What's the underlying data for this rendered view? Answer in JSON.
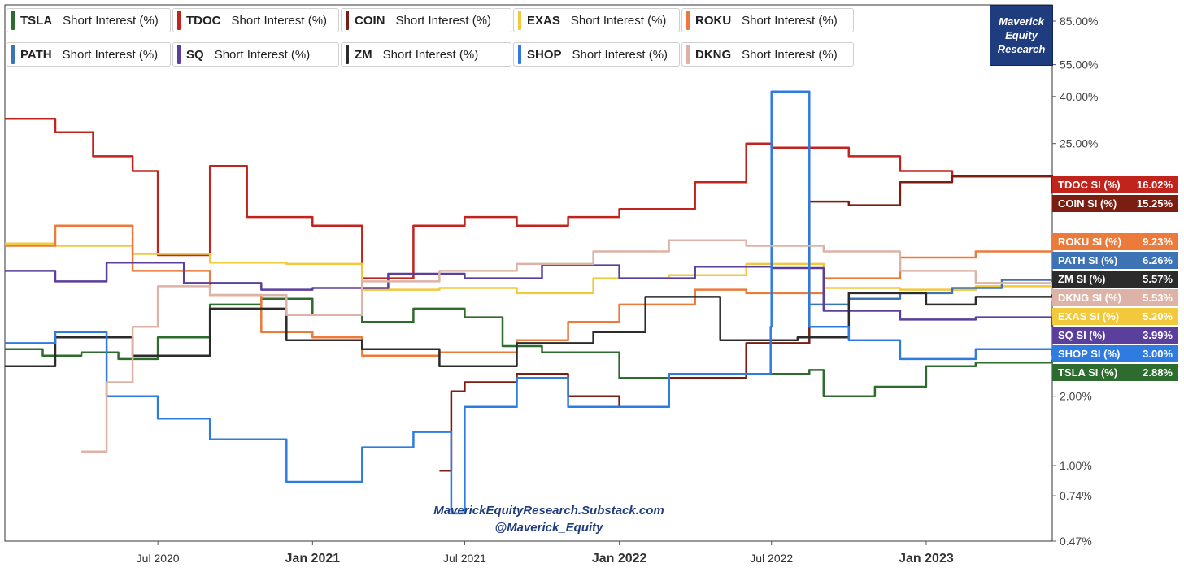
{
  "branding": {
    "box_lines": [
      "Maverick",
      "Equity",
      "Research"
    ],
    "watermark_url": "MaverickEquityResearch.Substack.com",
    "watermark_handle": "@Maverick_Equity"
  },
  "legend": [
    {
      "symbol": "TSLA",
      "label": "Short Interest (%)",
      "color": "#2e6b2e"
    },
    {
      "symbol": "TDOC",
      "label": "Short Interest (%)",
      "color": "#c0241c"
    },
    {
      "symbol": "COIN",
      "label": "Short Interest (%)",
      "color": "#7b1d10"
    },
    {
      "symbol": "EXAS",
      "label": "Short Interest (%)",
      "color": "#f2c83c"
    },
    {
      "symbol": "ROKU",
      "label": "Short Interest (%)",
      "color": "#ec7a3a"
    },
    {
      "symbol": "PATH",
      "label": "Short Interest (%)",
      "color": "#3d73b5"
    },
    {
      "symbol": "SQ",
      "label": "Short Interest (%)",
      "color": "#5b3f9c"
    },
    {
      "symbol": "ZM",
      "label": "Short Interest (%)",
      "color": "#2b2b2b"
    },
    {
      "symbol": "SHOP",
      "label": "Short Interest (%)",
      "color": "#2f7be0"
    },
    {
      "symbol": "DKNG",
      "label": "Short Interest (%)",
      "color": "#dcb3a6"
    }
  ],
  "chart_data": {
    "type": "line",
    "title": "",
    "xlabel": "",
    "ylabel": "",
    "y_scale": "log",
    "ylim": [
      0.47,
      100
    ],
    "y_ticks": [
      "85.00%",
      "55.00%",
      "40.00%",
      "25.00%",
      "2.00%",
      "1.00%",
      "0.74%",
      "0.47%"
    ],
    "x_ticks": [
      "Jul 2020",
      "Jan 2021",
      "Jul 2021",
      "Jan 2022",
      "Jul 2022",
      "Jan 2023"
    ],
    "x_tick_dates": [
      "2020-07-01",
      "2021-01-01",
      "2021-07-01",
      "2022-01-01",
      "2022-07-01",
      "2023-01-01"
    ],
    "x_range": [
      "2020-01-01",
      "2023-05-31"
    ],
    "major_x_ticks": [
      "Jan 2021",
      "Jan 2022",
      "Jan 2023"
    ],
    "grid": false,
    "legend_position": "top",
    "series": [
      {
        "name": "TSLA",
        "color": "#2e6b2e",
        "last": "2.88%",
        "x": [
          "2020-01-01",
          "2020-02-15",
          "2020-04-01",
          "2020-05-15",
          "2020-07-01",
          "2020-09-01",
          "2020-11-01",
          "2021-01-01",
          "2021-03-01",
          "2021-05-01",
          "2021-07-01",
          "2021-08-15",
          "2021-10-01",
          "2022-01-01",
          "2022-03-01",
          "2022-08-15",
          "2022-09-01",
          "2022-11-01",
          "2023-01-01",
          "2023-03-01",
          "2023-05-31"
        ],
        "y": [
          3.2,
          3.0,
          3.1,
          2.9,
          3.6,
          5.0,
          5.3,
          4.5,
          4.2,
          4.8,
          4.4,
          3.3,
          3.1,
          2.4,
          2.5,
          2.6,
          2.0,
          2.2,
          2.7,
          2.8,
          2.88
        ]
      },
      {
        "name": "TDOC",
        "color": "#c0241c",
        "last": "16.02%",
        "x": [
          "2020-01-01",
          "2020-03-01",
          "2020-04-15",
          "2020-06-01",
          "2020-07-01",
          "2020-09-01",
          "2020-10-15",
          "2021-01-01",
          "2021-03-01",
          "2021-05-01",
          "2021-07-01",
          "2021-09-01",
          "2021-11-01",
          "2022-01-01",
          "2022-04-01",
          "2022-06-01",
          "2022-07-01",
          "2022-10-01",
          "2022-12-01",
          "2023-02-01",
          "2023-05-31"
        ],
        "y": [
          32,
          28,
          22,
          19,
          8.2,
          20,
          12,
          11,
          6.5,
          11,
          12,
          11,
          12,
          13,
          17,
          25,
          24,
          22,
          19,
          18,
          16.02
        ]
      },
      {
        "name": "COIN",
        "color": "#7b1d10",
        "last": "15.25%",
        "x": [
          "2021-06-01",
          "2021-06-15",
          "2021-07-01",
          "2021-09-01",
          "2021-11-01",
          "2022-01-01",
          "2022-03-01",
          "2022-06-01",
          "2022-08-15",
          "2022-10-01",
          "2022-12-01",
          "2023-02-01",
          "2023-05-31"
        ],
        "y": [
          0.95,
          2.1,
          2.3,
          2.5,
          2.0,
          1.8,
          2.4,
          3.4,
          14,
          13.5,
          17,
          18,
          15.25
        ]
      },
      {
        "name": "EXAS",
        "color": "#f2c83c",
        "last": "5.20%",
        "x": [
          "2020-01-01",
          "2020-03-01",
          "2020-06-01",
          "2020-09-01",
          "2020-12-01",
          "2021-03-01",
          "2021-06-01",
          "2021-09-01",
          "2021-12-01",
          "2022-03-01",
          "2022-06-01",
          "2022-09-01",
          "2022-12-01",
          "2023-03-01",
          "2023-05-31"
        ],
        "y": [
          9.2,
          9.0,
          8.3,
          7.6,
          7.5,
          5.8,
          5.9,
          5.6,
          6.5,
          6.7,
          7.5,
          5.9,
          5.8,
          6.0,
          5.2
        ]
      },
      {
        "name": "ROKU",
        "color": "#ec7a3a",
        "last": "9.23%",
        "x": [
          "2020-01-01",
          "2020-03-01",
          "2020-06-01",
          "2020-09-01",
          "2020-11-01",
          "2021-01-01",
          "2021-03-01",
          "2021-06-01",
          "2021-09-01",
          "2021-11-01",
          "2022-01-01",
          "2022-04-01",
          "2022-06-01",
          "2022-09-01",
          "2022-12-01",
          "2023-03-01",
          "2023-05-31"
        ],
        "y": [
          9.0,
          11,
          7.0,
          5.5,
          3.8,
          3.6,
          3.0,
          3.1,
          3.5,
          4.2,
          5.0,
          5.8,
          5.6,
          6.5,
          8.0,
          8.5,
          9.23
        ]
      },
      {
        "name": "PATH",
        "color": "#3d73b5",
        "last": "6.26%",
        "x": [
          "2022-08-15",
          "2022-10-01",
          "2022-12-01",
          "2023-02-01",
          "2023-04-01",
          "2023-05-31"
        ],
        "y": [
          5.0,
          5.3,
          5.6,
          5.9,
          6.4,
          6.26
        ]
      },
      {
        "name": "SQ",
        "color": "#5b3f9c",
        "last": "3.99%",
        "x": [
          "2020-01-01",
          "2020-03-01",
          "2020-05-01",
          "2020-08-01",
          "2020-11-01",
          "2021-01-01",
          "2021-04-01",
          "2021-07-01",
          "2021-10-01",
          "2022-01-01",
          "2022-04-01",
          "2022-07-01",
          "2022-09-01",
          "2022-12-01",
          "2023-03-01",
          "2023-05-31"
        ],
        "y": [
          7.0,
          6.3,
          7.6,
          6.2,
          5.8,
          5.9,
          6.8,
          6.5,
          7.4,
          6.5,
          7.3,
          7.2,
          4.7,
          4.3,
          4.4,
          3.99
        ]
      },
      {
        "name": "ZM",
        "color": "#2b2b2b",
        "last": "5.57%",
        "x": [
          "2020-01-01",
          "2020-03-01",
          "2020-06-01",
          "2020-09-01",
          "2020-12-01",
          "2021-03-01",
          "2021-06-01",
          "2021-09-01",
          "2021-12-01",
          "2022-02-01",
          "2022-05-01",
          "2022-08-01",
          "2022-10-01",
          "2023-01-01",
          "2023-03-01",
          "2023-05-31"
        ],
        "y": [
          2.7,
          3.6,
          3.0,
          4.8,
          3.5,
          3.2,
          2.7,
          3.4,
          3.8,
          5.4,
          3.5,
          3.6,
          5.6,
          5.0,
          5.4,
          5.57
        ]
      },
      {
        "name": "SHOP",
        "color": "#2f7be0",
        "last": "3.00%",
        "x": [
          "2020-01-01",
          "2020-03-01",
          "2020-05-01",
          "2020-07-01",
          "2020-09-01",
          "2020-12-01",
          "2021-03-01",
          "2021-05-01",
          "2021-06-15",
          "2021-07-01",
          "2021-09-01",
          "2021-11-01",
          "2022-01-01",
          "2022-03-01",
          "2022-06-30",
          "2022-07-01",
          "2022-08-15",
          "2022-10-01",
          "2022-12-01",
          "2023-03-01",
          "2023-05-31"
        ],
        "y": [
          3.4,
          3.8,
          2.0,
          1.6,
          1.3,
          0.85,
          1.2,
          1.4,
          0.62,
          1.8,
          2.4,
          1.8,
          1.8,
          2.5,
          4.0,
          42,
          4.0,
          3.5,
          2.9,
          3.2,
          3.0
        ]
      },
      {
        "name": "DKNG",
        "color": "#dcb3a6",
        "last": "5.53%",
        "x": [
          "2020-04-01",
          "2020-05-01",
          "2020-06-01",
          "2020-07-01",
          "2020-09-01",
          "2020-12-01",
          "2021-03-01",
          "2021-06-01",
          "2021-09-01",
          "2021-12-01",
          "2022-03-01",
          "2022-06-01",
          "2022-09-01",
          "2022-12-01",
          "2023-03-01",
          "2023-05-31"
        ],
        "y": [
          1.15,
          2.3,
          4.0,
          6.0,
          5.5,
          4.5,
          6.3,
          7.0,
          7.5,
          8.5,
          9.5,
          9.0,
          8.5,
          7.0,
          6.2,
          5.53
        ]
      }
    ],
    "end_tags": [
      {
        "label": "TDOC SI (%)",
        "value": "16.02%",
        "color": "#c0241c"
      },
      {
        "label": "COIN SI (%)",
        "value": "15.25%",
        "color": "#7b1d10"
      },
      {
        "label": "ROKU SI (%)",
        "value": "9.23%",
        "color": "#ec7a3a"
      },
      {
        "label": "PATH SI (%)",
        "value": "6.26%",
        "color": "#3d73b5"
      },
      {
        "label": "ZM SI (%)",
        "value": "5.57%",
        "color": "#2b2b2b"
      },
      {
        "label": "DKNG SI (%)",
        "value": "5.53%",
        "color": "#dcb3a6"
      },
      {
        "label": "EXAS SI (%)",
        "value": "5.20%",
        "color": "#f2c83c"
      },
      {
        "label": "SQ SI (%)",
        "value": "3.99%",
        "color": "#5b3f9c"
      },
      {
        "label": "SHOP SI (%)",
        "value": "3.00%",
        "color": "#2f7be0"
      },
      {
        "label": "TSLA SI (%)",
        "value": "2.88%",
        "color": "#2e6b2e"
      }
    ]
  }
}
